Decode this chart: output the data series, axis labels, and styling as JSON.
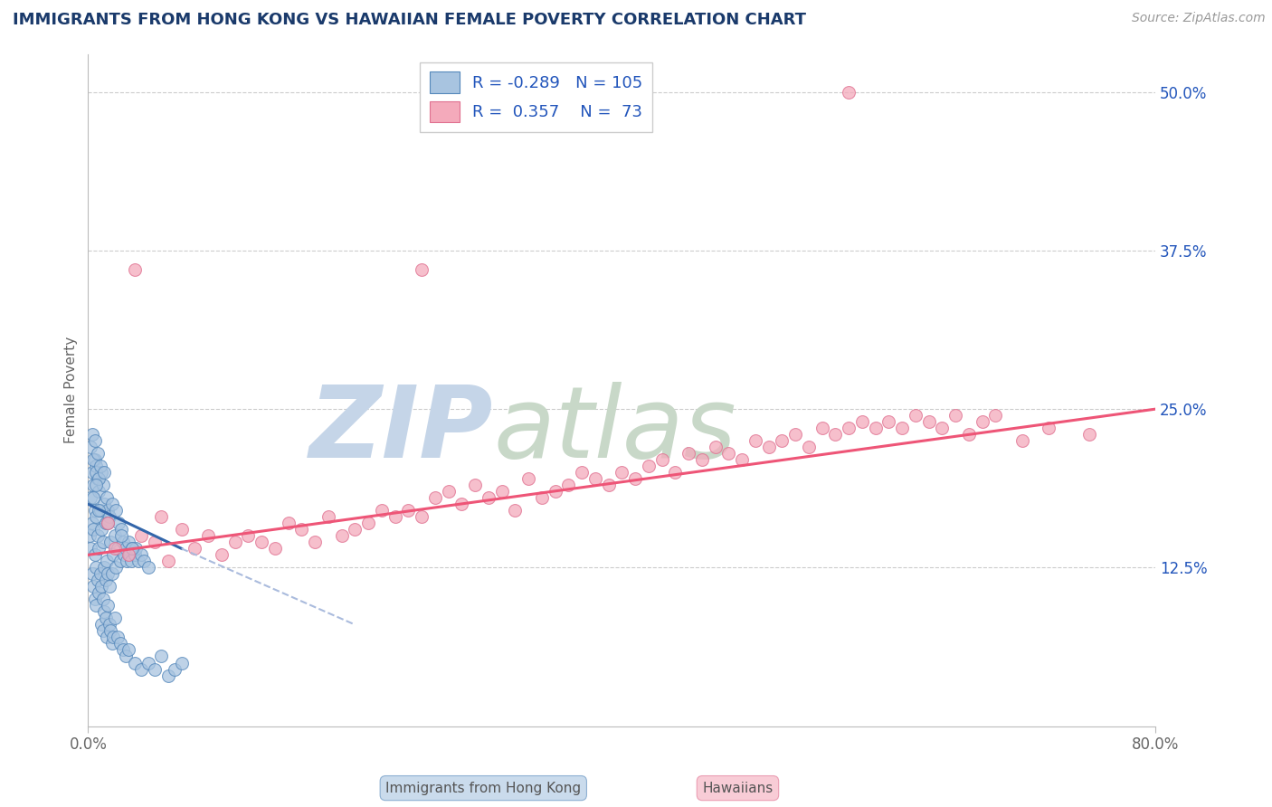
{
  "title": "IMMIGRANTS FROM HONG KONG VS HAWAIIAN FEMALE POVERTY CORRELATION CHART",
  "source_text": "Source: ZipAtlas.com",
  "ylabel": "Female Poverty",
  "watermark_zip": "ZIP",
  "watermark_atlas": "atlas",
  "xlim": [
    0.0,
    80.0
  ],
  "ylim": [
    0.0,
    53.0
  ],
  "ytick_positions": [
    0.0,
    12.5,
    25.0,
    37.5,
    50.0
  ],
  "ytick_labels": [
    "",
    "12.5%",
    "25.0%",
    "37.5%",
    "50.0%"
  ],
  "legend_r_blue": "-0.289",
  "legend_n_blue": "105",
  "legend_r_pink": "0.357",
  "legend_n_pink": "73",
  "legend_labels": [
    "Immigrants from Hong Kong",
    "Hawaiians"
  ],
  "blue_fill": "#A8C4E0",
  "blue_edge": "#5588BB",
  "pink_fill": "#F4AABB",
  "pink_edge": "#E07090",
  "trend_blue_color": "#3366AA",
  "trend_blue_dash_color": "#AABBDD",
  "trend_pink_color": "#EE5577",
  "title_color": "#1A3A6B",
  "source_color": "#999999",
  "watermark_zip_color": "#C5D5E8",
  "watermark_atlas_color": "#C8D8C8",
  "grid_color": "#CCCCCC",
  "legend_text_color": "#2255BB",
  "bottom_label_color": "#555555",
  "blue_scatter_x": [
    0.1,
    0.2,
    0.2,
    0.3,
    0.3,
    0.3,
    0.4,
    0.4,
    0.4,
    0.5,
    0.5,
    0.5,
    0.5,
    0.6,
    0.6,
    0.6,
    0.6,
    0.7,
    0.7,
    0.7,
    0.8,
    0.8,
    0.8,
    0.9,
    0.9,
    1.0,
    1.0,
    1.0,
    1.1,
    1.1,
    1.1,
    1.2,
    1.2,
    1.3,
    1.3,
    1.4,
    1.4,
    1.5,
    1.5,
    1.6,
    1.6,
    1.7,
    1.8,
    1.8,
    1.9,
    2.0,
    2.1,
    2.1,
    2.2,
    2.3,
    2.4,
    2.5,
    2.6,
    2.7,
    2.8,
    2.9,
    3.0,
    3.1,
    3.2,
    3.3,
    3.5,
    3.6,
    3.8,
    4.0,
    4.2,
    4.5,
    0.2,
    0.3,
    0.4,
    0.5,
    0.6,
    0.7,
    0.8,
    0.9,
    1.0,
    1.1,
    1.2,
    1.3,
    1.4,
    1.5,
    1.6,
    1.7,
    1.8,
    1.9,
    2.0,
    2.2,
    2.4,
    2.6,
    2.8,
    3.0,
    3.5,
    4.0,
    4.5,
    5.0,
    5.5,
    6.0,
    6.5,
    7.0,
    3.3,
    2.5,
    1.5,
    0.8,
    0.4,
    0.6,
    1.2
  ],
  "blue_scatter_y": [
    15.0,
    14.0,
    18.0,
    12.0,
    16.0,
    20.0,
    11.0,
    15.5,
    19.0,
    10.0,
    13.5,
    17.0,
    21.0,
    9.5,
    12.5,
    16.5,
    20.5,
    11.5,
    15.0,
    19.5,
    10.5,
    14.0,
    18.5,
    12.0,
    17.0,
    11.0,
    15.5,
    20.0,
    10.0,
    14.5,
    19.0,
    12.5,
    17.5,
    11.5,
    16.0,
    13.0,
    18.0,
    12.0,
    17.0,
    11.0,
    16.5,
    14.5,
    12.0,
    17.5,
    13.5,
    15.0,
    12.5,
    17.0,
    14.0,
    16.0,
    13.0,
    15.5,
    14.5,
    13.5,
    14.0,
    13.0,
    14.5,
    13.5,
    13.0,
    14.0,
    13.5,
    14.0,
    13.0,
    13.5,
    13.0,
    12.5,
    22.0,
    23.0,
    21.0,
    22.5,
    20.0,
    21.5,
    19.5,
    20.5,
    8.0,
    7.5,
    9.0,
    8.5,
    7.0,
    9.5,
    8.0,
    7.5,
    6.5,
    7.0,
    8.5,
    7.0,
    6.5,
    6.0,
    5.5,
    6.0,
    5.0,
    4.5,
    5.0,
    4.5,
    5.5,
    4.0,
    4.5,
    5.0,
    14.0,
    15.0,
    16.0,
    17.0,
    18.0,
    19.0,
    20.0
  ],
  "pink_scatter_x": [
    1.5,
    2.0,
    3.0,
    4.0,
    5.0,
    5.5,
    6.0,
    7.0,
    8.0,
    9.0,
    10.0,
    11.0,
    12.0,
    13.0,
    14.0,
    15.0,
    16.0,
    17.0,
    18.0,
    19.0,
    20.0,
    21.0,
    22.0,
    23.0,
    24.0,
    25.0,
    26.0,
    27.0,
    28.0,
    29.0,
    30.0,
    31.0,
    32.0,
    33.0,
    34.0,
    35.0,
    36.0,
    37.0,
    38.0,
    39.0,
    40.0,
    41.0,
    42.0,
    43.0,
    44.0,
    45.0,
    46.0,
    47.0,
    48.0,
    49.0,
    50.0,
    51.0,
    52.0,
    53.0,
    54.0,
    55.0,
    56.0,
    57.0,
    58.0,
    59.0,
    60.0,
    61.0,
    62.0,
    63.0,
    64.0,
    65.0,
    66.0,
    67.0,
    68.0,
    70.0,
    72.0,
    75.0,
    3.5
  ],
  "pink_scatter_y": [
    16.0,
    14.0,
    13.5,
    15.0,
    14.5,
    16.5,
    13.0,
    15.5,
    14.0,
    15.0,
    13.5,
    14.5,
    15.0,
    14.5,
    14.0,
    16.0,
    15.5,
    14.5,
    16.5,
    15.0,
    15.5,
    16.0,
    17.0,
    16.5,
    17.0,
    16.5,
    18.0,
    18.5,
    17.5,
    19.0,
    18.0,
    18.5,
    17.0,
    19.5,
    18.0,
    18.5,
    19.0,
    20.0,
    19.5,
    19.0,
    20.0,
    19.5,
    20.5,
    21.0,
    20.0,
    21.5,
    21.0,
    22.0,
    21.5,
    21.0,
    22.5,
    22.0,
    22.5,
    23.0,
    22.0,
    23.5,
    23.0,
    23.5,
    24.0,
    23.5,
    24.0,
    23.5,
    24.5,
    24.0,
    23.5,
    24.5,
    23.0,
    24.0,
    24.5,
    22.5,
    23.5,
    23.0,
    36.0
  ],
  "pink_outlier_x": 57.0,
  "pink_outlier_y": 50.0,
  "pink_outlier2_x": 25.0,
  "pink_outlier2_y": 36.0,
  "blue_trend_x1": 0.0,
  "blue_trend_y1": 17.5,
  "blue_trend_x2": 7.0,
  "blue_trend_y2": 14.0,
  "blue_dash_x1": 7.0,
  "blue_dash_y1": 14.0,
  "blue_dash_x2": 20.0,
  "blue_dash_y2": 8.0,
  "pink_trend_x1": 0.0,
  "pink_trend_y1": 13.5,
  "pink_trend_x2": 80.0,
  "pink_trend_y2": 25.0,
  "marker_size": 100
}
